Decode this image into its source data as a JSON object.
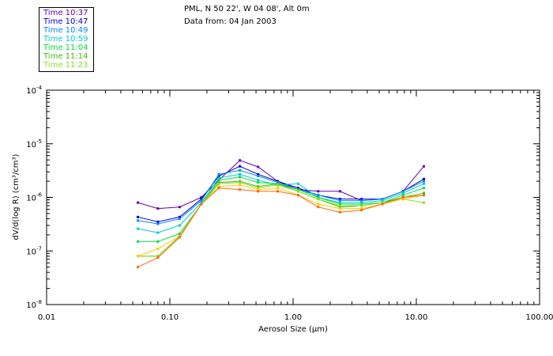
{
  "header": {
    "location": "PML, N 50 22', W 04 08', Alt 0m",
    "date_line": "Data from: 04 Jan 2003"
  },
  "chart_data": {
    "type": "line",
    "xscale": "log",
    "yscale": "log",
    "xlim": [
      0.01,
      100
    ],
    "ylim": [
      1e-08,
      0.0001
    ],
    "xlabel": "Aerosol Size (µm)",
    "ylabel": "dV/d(log R) (cm³/cm³)",
    "xticks": [
      {
        "value": 0.01,
        "label": "0.01"
      },
      {
        "value": 0.1,
        "label": "0.10"
      },
      {
        "value": 1,
        "label": "1.00"
      },
      {
        "value": 10,
        "label": "10.00"
      },
      {
        "value": 100,
        "label": "100.00"
      }
    ],
    "yticks": [
      {
        "value": 0.0001,
        "base": "10",
        "exp": "-4"
      },
      {
        "value": 1e-05,
        "base": "10",
        "exp": "-5"
      },
      {
        "value": 1e-06,
        "base": "10",
        "exp": "-6"
      },
      {
        "value": 1e-07,
        "base": "10",
        "exp": "-7"
      },
      {
        "value": 1e-08,
        "base": "10",
        "exp": "-8"
      }
    ],
    "x": [
      0.055,
      0.08,
      0.12,
      0.18,
      0.25,
      0.37,
      0.52,
      0.75,
      1.1,
      1.6,
      2.4,
      3.6,
      5.3,
      7.8,
      11.5
    ],
    "series": [
      {
        "name": "Time 10:37",
        "color": "#6600aa",
        "values": [
          8e-07,
          6.2e-07,
          6.6e-07,
          1e-06,
          2.1e-06,
          4.9e-06,
          3.7e-06,
          2e-06,
          1.4e-06,
          1.3e-06,
          1.3e-06,
          8.7e-07,
          9.3e-07,
          1.3e-06,
          3.8e-06
        ]
      },
      {
        "name": "Time 10:47",
        "color": "#0000cc",
        "values": [
          4.3e-07,
          3.5e-07,
          4.3e-07,
          9.3e-07,
          2.5e-06,
          3.8e-06,
          2.7e-06,
          2e-06,
          1.5e-06,
          1.1e-06,
          9.3e-07,
          9.3e-07,
          9.3e-07,
          1.3e-06,
          2.2e-06
        ]
      },
      {
        "name": "Time 10:49",
        "color": "#0088ff",
        "values": [
          3.7e-07,
          3.2e-07,
          4e-07,
          8.7e-07,
          2.7e-06,
          3.2e-06,
          2.5e-06,
          1.9e-06,
          1.4e-06,
          1.1e-06,
          8.7e-07,
          8.7e-07,
          9.3e-07,
          1.3e-06,
          2e-06
        ]
      },
      {
        "name": "Time 10:59",
        "color": "#00cccc",
        "values": [
          2.6e-07,
          2.2e-07,
          3e-07,
          8e-07,
          2.3e-06,
          2.7e-06,
          2.1e-06,
          1.7e-06,
          1.8e-06,
          1e-06,
          8e-07,
          8e-07,
          8.7e-07,
          1.2e-06,
          1.8e-06
        ]
      },
      {
        "name": "Time 11:04",
        "color": "#00dd44",
        "values": [
          1.5e-07,
          1.5e-07,
          2.1e-07,
          7.5e-07,
          2.1e-06,
          2.4e-06,
          1.9e-06,
          1.8e-06,
          1.4e-06,
          1e-06,
          7.5e-07,
          7.5e-07,
          8e-07,
          1.1e-06,
          1.5e-06
        ]
      },
      {
        "name": "Time 11:14",
        "color": "#44bb00",
        "values": [
          8e-08,
          8e-08,
          1.9e-07,
          7.5e-07,
          1.9e-06,
          2e-06,
          1.6e-06,
          1.8e-06,
          1.3e-06,
          9.3e-07,
          6.6e-07,
          7e-07,
          8e-07,
          1e-06,
          1.2e-06
        ]
      },
      {
        "name": "Time 11:23",
        "color": "#88dd22",
        "values": [
          8e-08,
          8e-08,
          1.9e-07,
          7.5e-07,
          1.8e-06,
          1.9e-06,
          1.5e-06,
          1.7e-06,
          1.3e-06,
          9.3e-07,
          7e-07,
          7e-07,
          8e-07,
          9.3e-07,
          8e-07
        ]
      },
      {
        "name": "",
        "color": "#ffcc00",
        "values": [
          8e-08,
          1.1e-07,
          1.9e-07,
          7.5e-07,
          1.6e-06,
          1.7e-06,
          1.4e-06,
          1.5e-06,
          1.1e-06,
          7.5e-07,
          6.2e-07,
          6.2e-07,
          7.5e-07,
          9.3e-07,
          1.1e-06
        ]
      },
      {
        "name": "",
        "color": "#ff6600",
        "values": [
          5e-08,
          7.5e-08,
          1.8e-07,
          7.5e-07,
          1.5e-06,
          1.4e-06,
          1.3e-06,
          1.3e-06,
          1.1e-06,
          6.6e-07,
          5.3e-07,
          5.8e-07,
          7.5e-07,
          1e-06,
          1.1e-06
        ]
      }
    ]
  }
}
